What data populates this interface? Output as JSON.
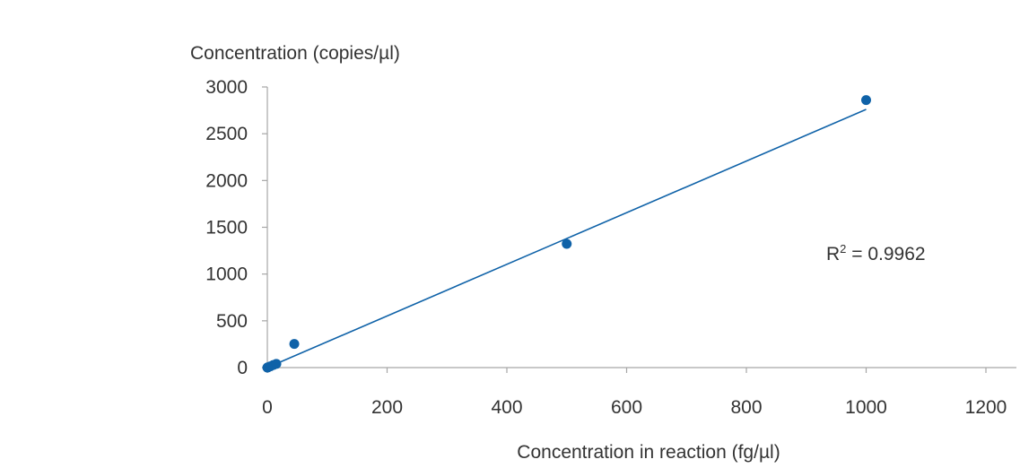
{
  "chart_data": {
    "type": "scatter",
    "title": "",
    "ylabel": "Concentration (copies/µl)",
    "xlabel": "Concentration in reaction (fg/µl)",
    "xlim": [
      0,
      1200
    ],
    "ylim": [
      0,
      3000
    ],
    "x_ticks": [
      0,
      200,
      400,
      600,
      800,
      1000,
      1200
    ],
    "y_ticks": [
      0,
      500,
      1000,
      1500,
      2000,
      2500,
      3000
    ],
    "x_tick_labels": [
      "0",
      "200",
      "400",
      "600",
      "800",
      "1000",
      "1200"
    ],
    "y_tick_labels": [
      "0",
      "500",
      "1000",
      "1500",
      "2000",
      "2500",
      "3000"
    ],
    "grid": false,
    "series": [
      {
        "x": [
          0,
          1,
          5,
          10,
          15,
          45,
          500,
          1000
        ],
        "y": [
          0,
          3,
          13,
          28,
          40,
          253,
          1323,
          2860
        ],
        "color": "#0f62a8"
      }
    ],
    "trendline": {
      "type": "linear",
      "x": [
        0,
        1000
      ],
      "y": [
        0,
        2760
      ],
      "color": "#0f62a8"
    },
    "annotation": {
      "r2_prefix": "R",
      "r2_sup": "2",
      "r2_value": " = 0.9962"
    },
    "axis_color": "#a6a6a6"
  }
}
